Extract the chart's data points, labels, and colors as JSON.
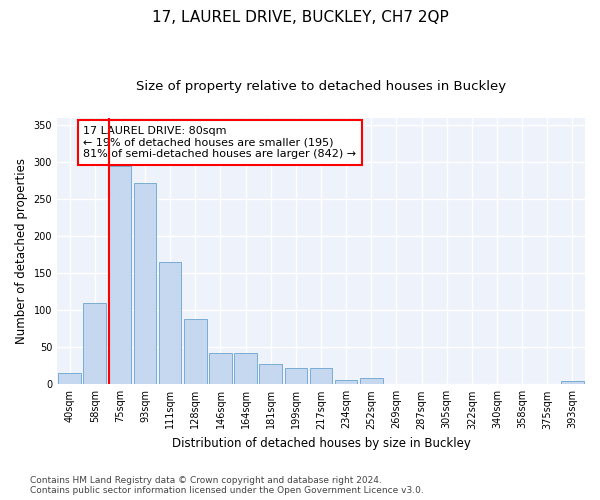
{
  "title": "17, LAUREL DRIVE, BUCKLEY, CH7 2QP",
  "subtitle": "Size of property relative to detached houses in Buckley",
  "xlabel": "Distribution of detached houses by size in Buckley",
  "ylabel": "Number of detached properties",
  "footer_line1": "Contains HM Land Registry data © Crown copyright and database right 2024.",
  "footer_line2": "Contains public sector information licensed under the Open Government Licence v3.0.",
  "bin_labels": [
    "40sqm",
    "58sqm",
    "75sqm",
    "93sqm",
    "111sqm",
    "128sqm",
    "146sqm",
    "164sqm",
    "181sqm",
    "199sqm",
    "217sqm",
    "234sqm",
    "252sqm",
    "269sqm",
    "287sqm",
    "305sqm",
    "322sqm",
    "340sqm",
    "358sqm",
    "375sqm",
    "393sqm"
  ],
  "bin_values": [
    15,
    110,
    295,
    272,
    165,
    88,
    42,
    42,
    28,
    22,
    22,
    6,
    8,
    1,
    1,
    1,
    1,
    1,
    1,
    1,
    4
  ],
  "bar_color": "#c5d8f0",
  "bar_edge_color": "#7aadd4",
  "red_line_index": 2,
  "annotation_line1": "17 LAUREL DRIVE: 80sqm",
  "annotation_line2": "← 19% of detached houses are smaller (195)",
  "annotation_line3": "81% of semi-detached houses are larger (842) →",
  "annotation_box_color": "white",
  "annotation_box_edge": "red",
  "ylim": [
    0,
    360
  ],
  "yticks": [
    0,
    50,
    100,
    150,
    200,
    250,
    300,
    350
  ],
  "plot_bg": "#eef2fb",
  "fig_bg": "#ffffff",
  "grid_color": "white",
  "title_fontsize": 11,
  "subtitle_fontsize": 9.5,
  "axis_label_fontsize": 8.5,
  "tick_fontsize": 7,
  "annotation_fontsize": 8,
  "footer_fontsize": 6.5
}
